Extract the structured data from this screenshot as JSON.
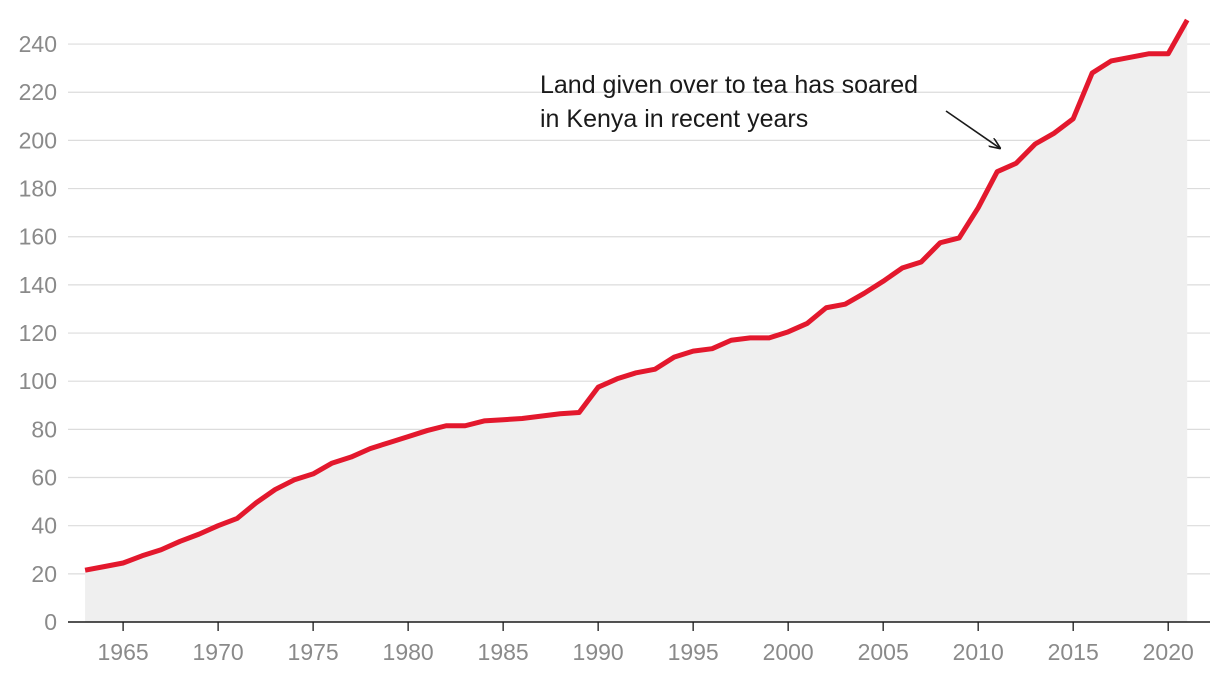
{
  "chart_data": {
    "type": "area",
    "title": "",
    "xlabel": "",
    "ylabel": "",
    "x": [
      1963,
      1964,
      1965,
      1966,
      1967,
      1968,
      1969,
      1970,
      1971,
      1972,
      1973,
      1974,
      1975,
      1976,
      1977,
      1978,
      1979,
      1980,
      1981,
      1982,
      1983,
      1984,
      1985,
      1986,
      1987,
      1988,
      1989,
      1990,
      1991,
      1992,
      1993,
      1994,
      1995,
      1996,
      1997,
      1998,
      1999,
      2000,
      2001,
      2002,
      2003,
      2004,
      2005,
      2006,
      2007,
      2008,
      2009,
      2010,
      2011,
      2012,
      2013,
      2014,
      2015,
      2016,
      2017,
      2018,
      2019,
      2020,
      2021
    ],
    "series": [
      {
        "values": [
          21.5,
          23,
          24.5,
          27.5,
          30,
          33.5,
          36.5,
          40,
          43,
          49.5,
          55,
          59,
          61.5,
          66,
          68.5,
          72,
          74.5,
          77,
          79.5,
          81.5,
          81.5,
          83.5,
          84,
          84.5,
          85.5,
          86.5,
          87,
          97.5,
          101,
          103.5,
          105,
          110,
          112.5,
          113.5,
          117,
          118,
          118,
          120.5,
          124,
          130.5,
          132,
          136.5,
          141.5,
          147,
          149.5,
          157.5,
          159.5,
          172,
          187,
          190.5,
          198.5,
          203,
          209,
          228,
          233,
          234.5,
          236,
          236,
          250
        ],
        "color": "#e3182d"
      }
    ],
    "xlim": [
      1962.1,
      2022.2
    ],
    "ylim": [
      0,
      250
    ],
    "x_ticks": [
      "1965",
      "1970",
      "1975",
      "1980",
      "1985",
      "1990",
      "1995",
      "2000",
      "2005",
      "2010",
      "2015",
      "2020"
    ],
    "y_ticks": [
      "0",
      "20",
      "40",
      "60",
      "80",
      "100",
      "120",
      "140",
      "160",
      "180",
      "200",
      "220",
      "240"
    ],
    "grid": true,
    "fill_color": "#efefef",
    "annotation": {
      "lines": [
        "Land given over to tea has soared",
        "in Kenya in recent years"
      ],
      "points_to_x": 2011,
      "points_to_y": 187
    }
  }
}
